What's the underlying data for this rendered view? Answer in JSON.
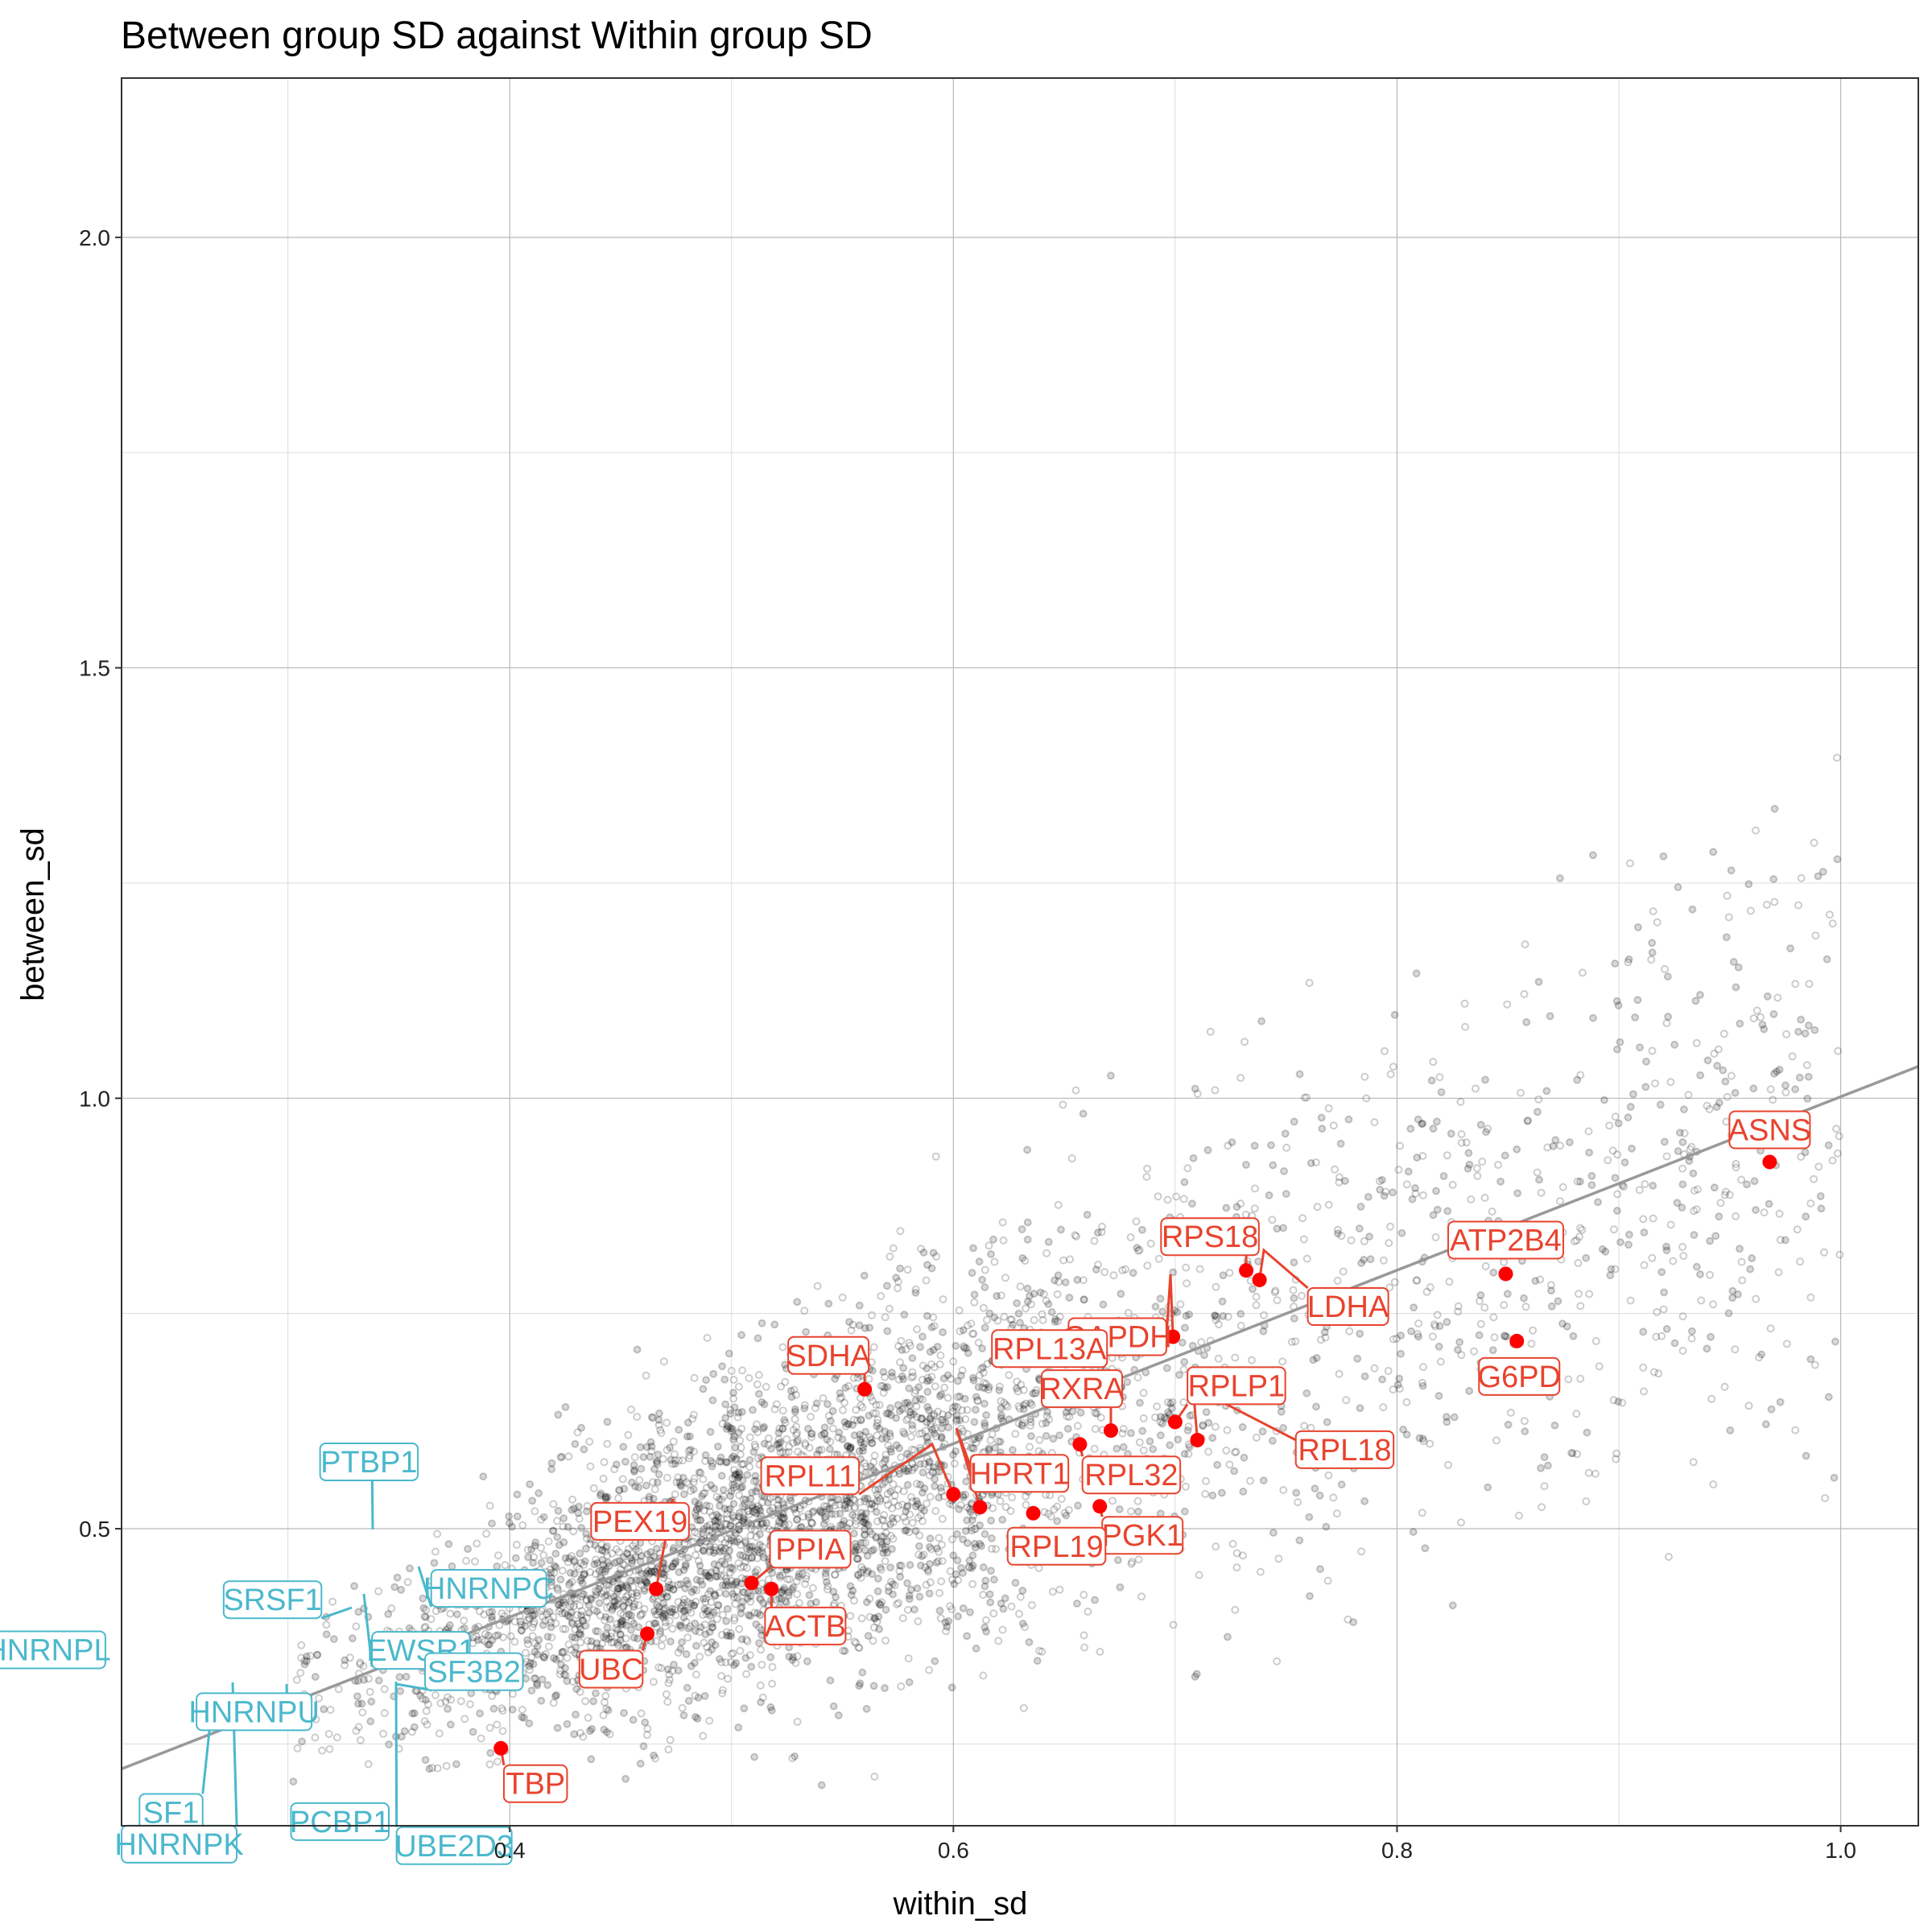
{
  "chart_data": {
    "type": "scatter",
    "title": "Between group SD against Within group SD",
    "xlabel": "within_sd",
    "ylabel": "between_sd",
    "xlim": [
      0.225,
      1.035
    ],
    "ylim": [
      0.155,
      2.185
    ],
    "x_ticks": [
      0.4,
      0.6,
      0.8,
      1.0
    ],
    "x_tick_labels": [
      "0.4",
      "0.6",
      "0.8",
      "1.0"
    ],
    "y_ticks": [
      0.5,
      1.0,
      1.5,
      2.0
    ],
    "y_tick_labels": [
      "0.5",
      "1.0",
      "1.5",
      "2.0"
    ],
    "grid": true,
    "legend": "none",
    "trend_line": {
      "x": [
        0.225,
        1.035
      ],
      "y": [
        0.221,
        1.037
      ],
      "color": "#999999"
    },
    "background_points": {
      "count": 4200,
      "color": "#000000",
      "opacity": 0.15,
      "shape": "open+filled circle"
    },
    "series": [
      {
        "name": "red_labeled",
        "color": "#ff0000",
        "label_color": "#e8432e",
        "points": [
          {
            "label": "ASNS",
            "x": 0.968,
            "y": 0.926
          },
          {
            "label": "ATP2B4",
            "x": 0.849,
            "y": 0.796
          },
          {
            "label": "G6PD",
            "x": 0.854,
            "y": 0.718
          },
          {
            "label": "RPS18",
            "x": 0.732,
            "y": 0.8
          },
          {
            "label": "LDHA",
            "x": 0.738,
            "y": 0.789
          },
          {
            "label": "GAPDH",
            "x": 0.699,
            "y": 0.723
          },
          {
            "label": "RPL13A",
            "x": 0.672,
            "y": 0.712
          },
          {
            "label": "SDHA",
            "x": 0.56,
            "y": 0.662
          },
          {
            "label": "RPLP1",
            "x": 0.7,
            "y": 0.624
          },
          {
            "label": "RXRA",
            "x": 0.671,
            "y": 0.614
          },
          {
            "label": "RPL18",
            "x": 0.71,
            "y": 0.603
          },
          {
            "label": "RPL32",
            "x": 0.657,
            "y": 0.598
          },
          {
            "label": "HPRT1",
            "x": 0.612,
            "y": 0.525
          },
          {
            "label": "PGK1",
            "x": 0.666,
            "y": 0.526
          },
          {
            "label": "RPL19",
            "x": 0.636,
            "y": 0.518
          },
          {
            "label": "RPL11",
            "x": 0.6,
            "y": 0.54
          },
          {
            "label": "PEX19",
            "x": 0.466,
            "y": 0.43
          },
          {
            "label": "PPIA",
            "x": 0.509,
            "y": 0.437
          },
          {
            "label": "ACTB",
            "x": 0.518,
            "y": 0.43
          },
          {
            "label": "UBC",
            "x": 0.462,
            "y": 0.378
          },
          {
            "label": "TBP",
            "x": 0.396,
            "y": 0.245
          }
        ]
      },
      {
        "name": "blue_labeled",
        "color": "#4bb8cc",
        "label_color": "#4bb8cc",
        "points": [
          {
            "label": "PTBP1",
            "x": 0.338,
            "y": 0.415
          },
          {
            "label": "SRSF1",
            "x": 0.329,
            "y": 0.325
          },
          {
            "label": "HNRNPC",
            "x": 0.351,
            "y": 0.37
          },
          {
            "label": "HNRNPL",
            "x": 0.26,
            "y": 0.335
          },
          {
            "label": "EWSR1",
            "x": 0.336,
            "y": 0.34
          },
          {
            "label": "SF3B2",
            "x": 0.365,
            "y": 0.275
          },
          {
            "label": "HNRNPU",
            "x": 0.3,
            "y": 0.236
          },
          {
            "label": "SF1",
            "x": 0.276,
            "y": 0.206
          },
          {
            "label": "PCBP1",
            "x": 0.31,
            "y": 0.2
          },
          {
            "label": "HNRNPK",
            "x": 0.28,
            "y": 0.215
          },
          {
            "label": "UBE2D3",
            "x": 0.343,
            "y": 0.23
          }
        ]
      }
    ]
  }
}
